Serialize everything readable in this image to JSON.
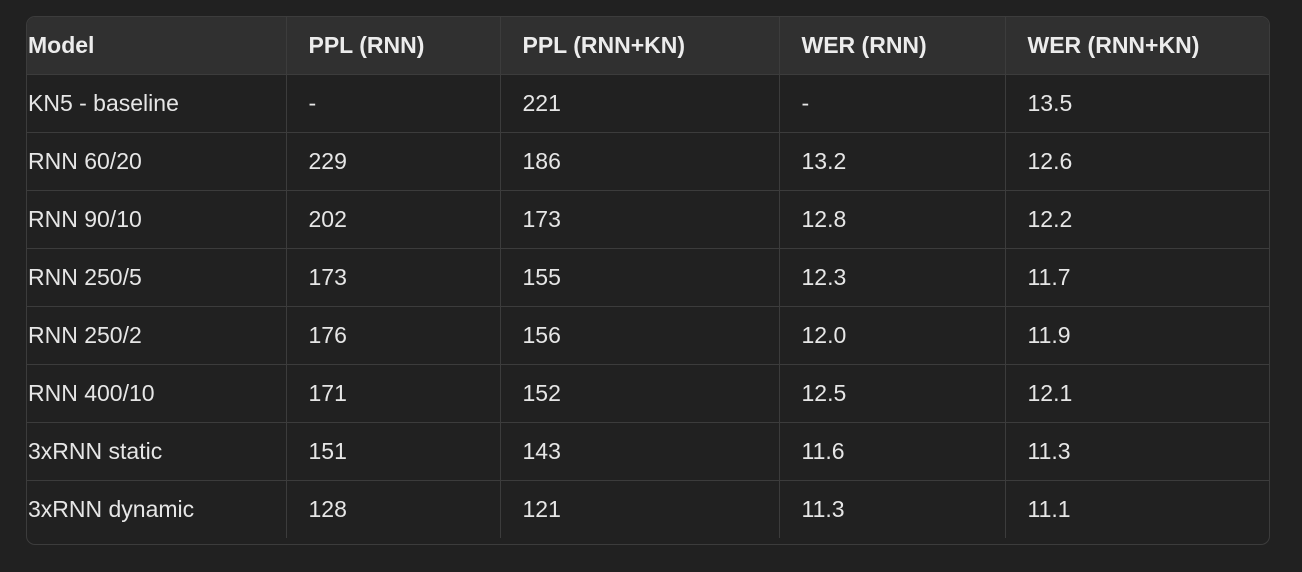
{
  "table": {
    "headers": [
      "Model",
      "PPL (RNN)",
      "PPL (RNN+KN)",
      "WER (RNN)",
      "WER (RNN+KN)"
    ],
    "rows": [
      [
        "KN5 - baseline",
        "-",
        "221",
        "-",
        "13.5"
      ],
      [
        "RNN 60/20",
        "229",
        "186",
        "13.2",
        "12.6"
      ],
      [
        "RNN 90/10",
        "202",
        "173",
        "12.8",
        "12.2"
      ],
      [
        "RNN 250/5",
        "173",
        "155",
        "12.3",
        "11.7"
      ],
      [
        "RNN 250/2",
        "176",
        "156",
        "12.0",
        "11.9"
      ],
      [
        "RNN 400/10",
        "171",
        "152",
        "12.5",
        "12.1"
      ],
      [
        "3xRNN static",
        "151",
        "143",
        "11.6",
        "11.3"
      ],
      [
        "3xRNN dynamic",
        "128",
        "121",
        "11.3",
        "11.1"
      ]
    ]
  }
}
